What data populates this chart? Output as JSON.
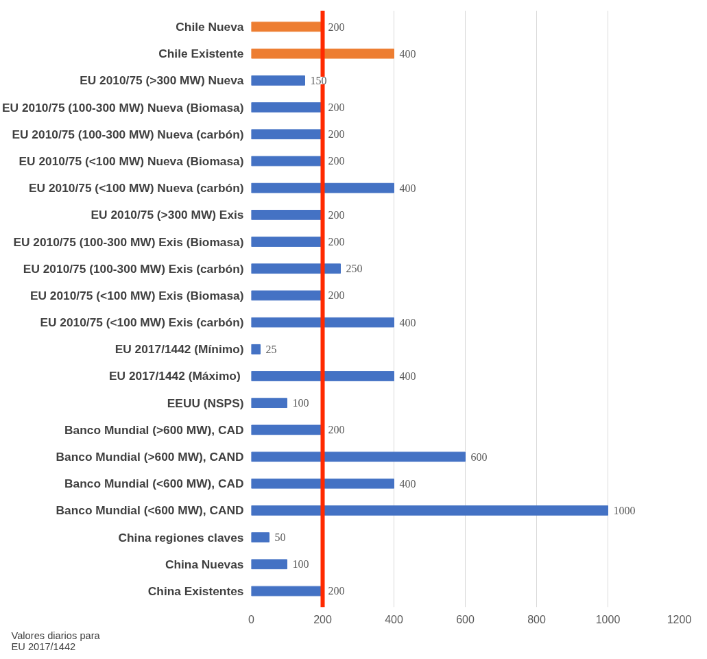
{
  "chart_data": {
    "type": "bar",
    "orientation": "horizontal",
    "categories": [
      "Chile Nueva",
      "Chile Existente",
      "EU 2010/75 (>300 MW) Nueva",
      "EU 2010/75 (100-300 MW) Nueva (Biomasa)",
      "EU 2010/75 (100-300 MW) Nueva (carbón)",
      "EU 2010/75 (<100 MW) Nueva (Biomasa)",
      "EU 2010/75 (<100 MW) Nueva (carbón)",
      "EU 2010/75 (>300 MW) Exis",
      "EU 2010/75 (100-300 MW) Exis (Biomasa)",
      "EU 2010/75 (100-300 MW) Exis (carbón)",
      "EU 2010/75 (<100 MW) Exis (Biomasa)",
      "EU 2010/75 (<100 MW) Exis (carbón)",
      "EU 2017/1442 (Mínimo)",
      "EU 2017/1442 (Máximo) ",
      "EEUU (NSPS)",
      "Banco Mundial (>600 MW), CAD",
      "Banco Mundial (>600 MW), CAND",
      "Banco Mundial (<600 MW), CAD",
      "Banco Mundial (<600 MW), CAND",
      "China regiones claves",
      "China Nuevas",
      "China Existentes"
    ],
    "values": [
      200,
      400,
      150,
      200,
      200,
      200,
      400,
      200,
      200,
      250,
      200,
      400,
      25,
      400,
      100,
      200,
      600,
      400,
      1000,
      50,
      100,
      200
    ],
    "colors": [
      "#ed7d31",
      "#ed7d31",
      "#4472c4",
      "#4472c4",
      "#4472c4",
      "#4472c4",
      "#4472c4",
      "#4472c4",
      "#4472c4",
      "#4472c4",
      "#4472c4",
      "#4472c4",
      "#4472c4",
      "#4472c4",
      "#4472c4",
      "#4472c4",
      "#4472c4",
      "#4472c4",
      "#4472c4",
      "#4472c4",
      "#4472c4",
      "#4472c4"
    ],
    "xlim": [
      0,
      1200
    ],
    "xticks": [
      0,
      200,
      400,
      600,
      800,
      1000,
      1200
    ],
    "grid": "x",
    "data_labels": true,
    "ref_lines": [
      {
        "axis": "x",
        "value": 200,
        "color": "#ff2a00"
      }
    ],
    "annotations": [
      "Valores diarios para\nEU 2017/1442"
    ]
  }
}
